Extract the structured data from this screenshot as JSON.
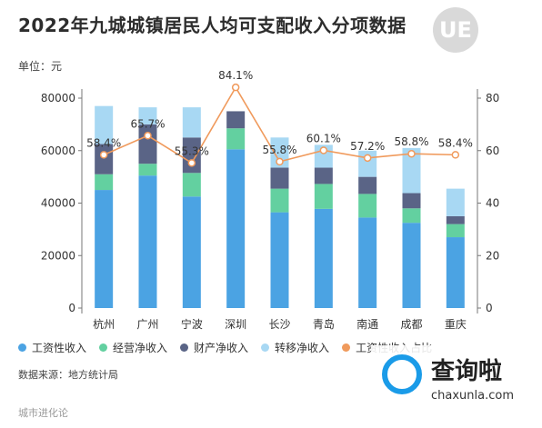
{
  "title": "2022年九城城镇居民人均可支配收入分项数据",
  "unit_label": "单位：元",
  "logo_text": "UE",
  "source": "数据来源：地方统计局",
  "footer": "城市进化论",
  "watermark": {
    "cn": "查询啦",
    "url": "chaxunla.com"
  },
  "colors": {
    "wage": "#4ba3e3",
    "business": "#63d0a0",
    "property": "#5a6486",
    "transfer": "#a8d8f3",
    "ratio": "#f09a5c"
  },
  "chart_data": {
    "type": "bar",
    "stacked": true,
    "title": "2022年九城城镇居民人均可支配收入分项数据",
    "categories": [
      "杭州",
      "广州",
      "宁波",
      "深圳",
      "长沙",
      "青岛",
      "南通",
      "成都",
      "重庆"
    ],
    "series": [
      {
        "name": "工资性收入",
        "values": [
          45000,
          50500,
          42500,
          60500,
          36500,
          37800,
          34500,
          32500,
          27000
        ]
      },
      {
        "name": "经营净收入",
        "values": [
          6000,
          4500,
          9000,
          8000,
          9000,
          9500,
          9000,
          5500,
          5000
        ]
      },
      {
        "name": "财产净收入",
        "values": [
          11500,
          15000,
          13500,
          6500,
          8000,
          6200,
          6500,
          5800,
          3000
        ]
      },
      {
        "name": "转移净收入",
        "values": [
          14500,
          6500,
          11500,
          0,
          11500,
          8700,
          10000,
          17200,
          10500
        ]
      }
    ],
    "line_series": {
      "name": "工资性收入占比",
      "values": [
        58.4,
        65.7,
        55.3,
        84.1,
        55.8,
        60.1,
        57.2,
        58.8,
        58.4
      ],
      "labels": [
        "58.4%",
        "65.7%",
        "55.3%",
        "84.1%",
        "55.8%",
        "60.1%",
        "57.2%",
        "58.8%",
        "58.4%"
      ]
    },
    "y_left": {
      "ticks": [
        "0",
        "20000",
        "40000",
        "60000",
        "80000"
      ],
      "min": 0,
      "max": 80000
    },
    "y_right": {
      "ticks": [
        "0",
        "20",
        "40",
        "60",
        "80"
      ],
      "min": 0,
      "max": 80
    },
    "legend": [
      "工资性收入",
      "经营净收入",
      "财产净收入",
      "转移净收入",
      "工资性收入占比"
    ],
    "legend_position": "bottom",
    "grid": false
  }
}
